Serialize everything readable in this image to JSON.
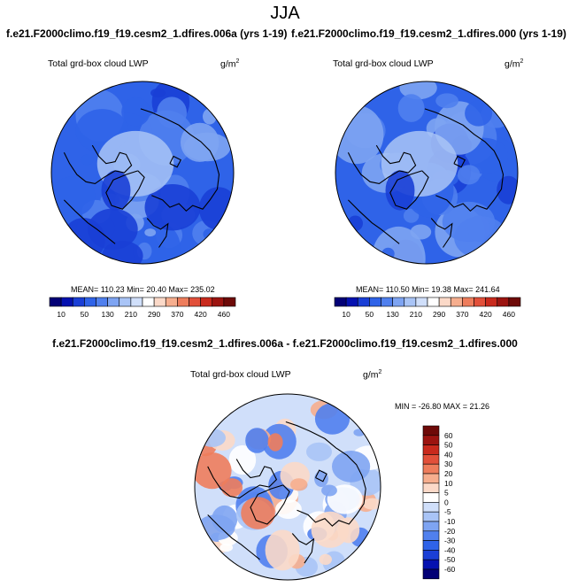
{
  "page": {
    "title": "JJA",
    "left_case": "f.e21.F2000climo.f19_f19.cesm2_1.dfires.006a (yrs 1-19)",
    "right_case": "f.e21.F2000climo.f19_f19.cesm2_1.dfires.000 (yrs 1-19)",
    "diff_title": "f.e21.F2000climo.f19_f19.cesm2_1.dfires.006a - f.e21.F2000climo.f19_f19.cesm2_1.dfires.000"
  },
  "chart_data": [
    {
      "type": "heatmap",
      "projection": "north-polar-stereographic",
      "variable": "Total grd-box cloud LWP",
      "units": "g/m",
      "units_sup": "2",
      "stats_text": "MEAN= 110.23  Min=  20.40  Max= 235.02",
      "mean": 110.23,
      "min": 20.4,
      "max": 235.02,
      "colorbar": {
        "orientation": "horizontal",
        "levels": [
          10,
          30,
          50,
          90,
          130,
          170,
          210,
          250,
          290,
          330,
          370,
          390,
          420,
          440,
          460
        ],
        "tick_labels": [
          "10",
          "50",
          "130",
          "210",
          "290",
          "370",
          "420",
          "460"
        ],
        "colors": [
          "#030076",
          "#0511b0",
          "#1a3fd6",
          "#2f63e8",
          "#5080ee",
          "#7ea4f2",
          "#a9c4f6",
          "#d0dffa",
          "#ffffff",
          "#fbd9c8",
          "#f6ae8e",
          "#ee7d5c",
          "#e2503a",
          "#c92a1d",
          "#9c1410",
          "#6e0a08"
        ]
      }
    },
    {
      "type": "heatmap",
      "projection": "north-polar-stereographic",
      "variable": "Total grd-box cloud LWP",
      "units": "g/m",
      "units_sup": "2",
      "stats_text": "MEAN= 110.50  Min=  19.38  Max= 241.64",
      "mean": 110.5,
      "min": 19.38,
      "max": 241.64,
      "colorbar": {
        "orientation": "horizontal",
        "levels": [
          10,
          30,
          50,
          90,
          130,
          170,
          210,
          250,
          290,
          330,
          370,
          390,
          420,
          440,
          460
        ],
        "tick_labels": [
          "10",
          "50",
          "130",
          "210",
          "290",
          "370",
          "420",
          "460"
        ],
        "colors": [
          "#030076",
          "#0511b0",
          "#1a3fd6",
          "#2f63e8",
          "#5080ee",
          "#7ea4f2",
          "#a9c4f6",
          "#d0dffa",
          "#ffffff",
          "#fbd9c8",
          "#f6ae8e",
          "#ee7d5c",
          "#e2503a",
          "#c92a1d",
          "#9c1410",
          "#6e0a08"
        ]
      }
    },
    {
      "type": "heatmap",
      "projection": "north-polar-stereographic",
      "variable": "Total grd-box cloud LWP",
      "units": "g/m",
      "units_sup": "2",
      "stats_text": "MIN = -26.80 MAX =  21.26",
      "min": -26.8,
      "max": 21.26,
      "colorbar": {
        "orientation": "vertical",
        "levels": [
          -60,
          -50,
          -40,
          -30,
          -20,
          -10,
          -5,
          0,
          5,
          10,
          20,
          30,
          40,
          50,
          60
        ],
        "tick_labels": [
          "-60",
          "-50",
          "-40",
          "-30",
          "-20",
          "-10",
          "-5",
          "0",
          "5",
          "10",
          "20",
          "30",
          "40",
          "50",
          "60"
        ],
        "colors": [
          "#030076",
          "#0511b0",
          "#1a3fd6",
          "#2f63e8",
          "#5080ee",
          "#7ea4f2",
          "#a9c4f6",
          "#d0dffa",
          "#ffffff",
          "#fbd9c8",
          "#f6ae8e",
          "#ee7d5c",
          "#e2503a",
          "#c92a1d",
          "#9c1410",
          "#6e0a08"
        ]
      }
    }
  ]
}
